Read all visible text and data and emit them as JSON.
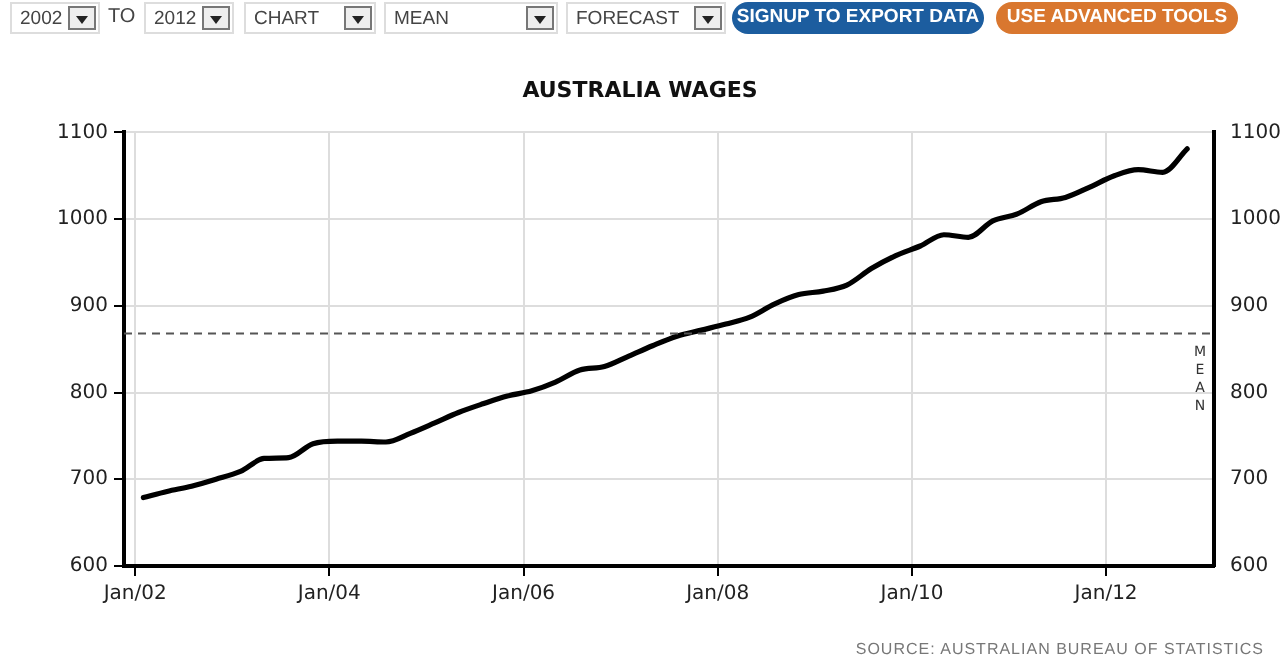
{
  "chart_data": {
    "type": "line",
    "title": "AUSTRALIA WAGES",
    "x": [
      "2002-02",
      "2002-05",
      "2002-08",
      "2002-11",
      "2003-02",
      "2003-05",
      "2003-08",
      "2003-11",
      "2004-02",
      "2004-05",
      "2004-08",
      "2004-11",
      "2005-02",
      "2005-05",
      "2005-08",
      "2005-11",
      "2006-02",
      "2006-05",
      "2006-08",
      "2006-11",
      "2007-02",
      "2007-05",
      "2007-08",
      "2007-11",
      "2008-02",
      "2008-05",
      "2008-08",
      "2008-11",
      "2009-02",
      "2009-05",
      "2009-08",
      "2009-11",
      "2010-02",
      "2010-05",
      "2010-08",
      "2010-11",
      "2011-02",
      "2011-05",
      "2011-08",
      "2011-11",
      "2012-02",
      "2012-05",
      "2012-08",
      "2012-11"
    ],
    "series": [
      {
        "color": "#000000",
        "values": [
          679,
          686,
          692,
          700,
          709,
          724,
          725,
          741,
          744,
          744,
          743,
          753,
          765,
          777,
          787,
          796,
          802,
          812,
          826,
          830,
          842,
          854,
          865,
          872,
          879,
          887,
          902,
          913,
          917,
          924,
          943,
          958,
          969,
          982,
          979,
          998,
          1006,
          1020,
          1025,
          1037,
          1050,
          1057,
          1054,
          1081
        ]
      }
    ],
    "xlim": [
      "2001-11-20",
      "2013-02-10"
    ],
    "xticks": [
      {
        "value": "2002-01-01",
        "label": "Jan/02"
      },
      {
        "value": "2004-01-01",
        "label": "Jan/04"
      },
      {
        "value": "2006-01-01",
        "label": "Jan/06"
      },
      {
        "value": "2008-01-01",
        "label": "Jan/08"
      },
      {
        "value": "2010-01-01",
        "label": "Jan/10"
      },
      {
        "value": "2012-01-01",
        "label": "Jan/12"
      }
    ],
    "ylim": [
      600,
      1100
    ],
    "yticks": [
      600,
      700,
      800,
      900,
      1000,
      1100
    ],
    "y2lim": [
      600,
      1100
    ],
    "y2ticks": [
      600,
      700,
      800,
      900,
      1000,
      1100
    ],
    "ref_lines": [
      {
        "axis": "y",
        "value": 868,
        "label": "MEAN",
        "color": "#555555",
        "line_style": "dashed"
      }
    ],
    "grid": true,
    "legend": false,
    "marker": "none",
    "line_style": "solid",
    "annotations": [
      "2002",
      "TO",
      "2012",
      "CHART",
      "MEAN",
      "FORECAST",
      "SIGNUP TO EXPORT DATA",
      "USE ADVANCED TOOLS",
      "SOURCE: AUSTRALIAN BUREAU OF STATISTICS"
    ]
  }
}
